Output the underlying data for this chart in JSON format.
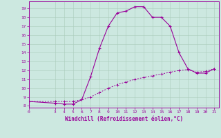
{
  "xlabel": "Windchill (Refroidissement éolien,°C)",
  "bg_color": "#cce8e0",
  "line_color": "#990099",
  "grid_color": "#aaccbb",
  "xlim": [
    0,
    21.5
  ],
  "ylim": [
    7.8,
    19.8
  ],
  "xticks": [
    0,
    3,
    4,
    5,
    6,
    7,
    8,
    9,
    10,
    11,
    12,
    13,
    14,
    15,
    16,
    17,
    18,
    19,
    20,
    21
  ],
  "yticks": [
    8,
    9,
    10,
    11,
    12,
    13,
    14,
    15,
    16,
    17,
    18,
    19
  ],
  "curve1_x": [
    0,
    3,
    4,
    5,
    6,
    7,
    8,
    9,
    10,
    11,
    12,
    13,
    14,
    15,
    16,
    17,
    18,
    19,
    20,
    21
  ],
  "curve1_y": [
    8.5,
    8.3,
    8.2,
    8.2,
    8.7,
    11.3,
    14.5,
    17.0,
    18.5,
    18.7,
    19.2,
    19.2,
    18.0,
    18.0,
    17.0,
    14.0,
    12.2,
    11.7,
    11.7,
    12.2
  ],
  "curve2_x": [
    0,
    3,
    4,
    5,
    6,
    7,
    8,
    9,
    10,
    11,
    12,
    13,
    14,
    15,
    16,
    17,
    18,
    19,
    20,
    21
  ],
  "curve2_y": [
    8.5,
    8.5,
    8.5,
    8.5,
    8.7,
    9.0,
    9.5,
    10.0,
    10.4,
    10.7,
    11.0,
    11.2,
    11.4,
    11.6,
    11.8,
    12.0,
    12.1,
    11.8,
    11.9,
    12.2
  ]
}
